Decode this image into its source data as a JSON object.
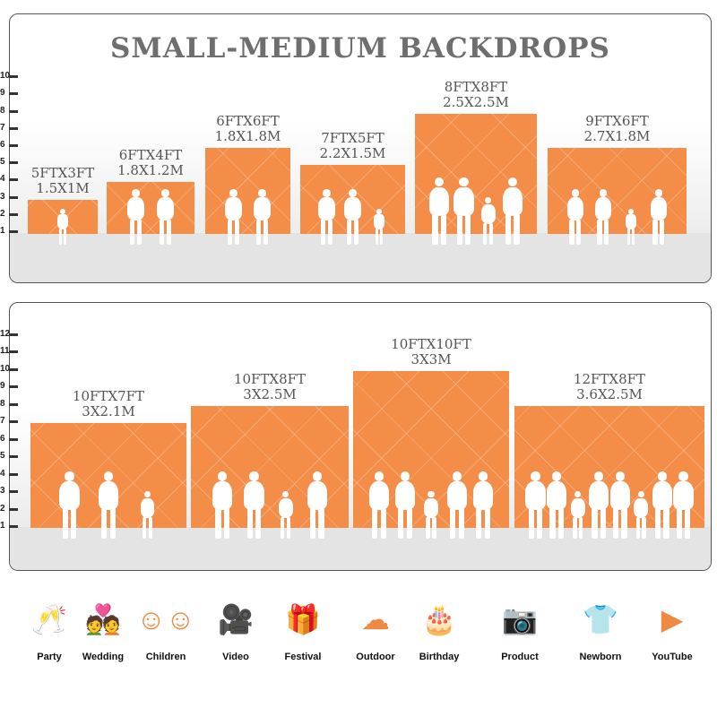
{
  "panels": [
    {
      "title": "SMALL-MEDIUM BACKDROPS",
      "ticks": [
        "1",
        "2",
        "3",
        "4",
        "5",
        "6",
        "7",
        "8",
        "9",
        "10"
      ],
      "unit_axis": "ft",
      "backdrops": [
        {
          "ft": "5FTX3FT",
          "m": "1.5X1M",
          "height_ft": 3,
          "people": 1
        },
        {
          "ft": "6FTX4FT",
          "m": "1.8X1.2M",
          "height_ft": 4,
          "people": 2
        },
        {
          "ft": "6FTX6FT",
          "m": "1.8X1.8M",
          "height_ft": 6,
          "people": 2
        },
        {
          "ft": "7FTX5FT",
          "m": "2.2X1.5M",
          "height_ft": 5,
          "people": 3
        },
        {
          "ft": "8FTX8FT",
          "m": "2.5X2.5M",
          "height_ft": 8,
          "people": 4
        },
        {
          "ft": "9FTX6FT",
          "m": "2.7X1.8M",
          "height_ft": 6,
          "people": 4
        }
      ]
    },
    {
      "title": "",
      "ticks": [
        "1",
        "2",
        "3",
        "4",
        "5",
        "6",
        "7",
        "8",
        "9",
        "10",
        "11",
        "12"
      ],
      "unit_axis": "ft",
      "backdrops": [
        {
          "ft": "10FTX7FT",
          "m": "3X2.1M",
          "height_ft": 7,
          "people": 3
        },
        {
          "ft": "10FTX8FT",
          "m": "3X2.5M",
          "height_ft": 8,
          "people": 4
        },
        {
          "ft": "10FTX10FT",
          "m": "3X3M",
          "height_ft": 10,
          "people": 5
        },
        {
          "ft": "12FTX8FT",
          "m": "3.6X2.5M",
          "height_ft": 8,
          "people": 8
        }
      ]
    }
  ],
  "uses": [
    {
      "label": "Party",
      "icon": "cheers-glasses-icon"
    },
    {
      "label": "Wedding",
      "icon": "wedding-couple-icon"
    },
    {
      "label": "Children",
      "icon": "children-faces-icon"
    },
    {
      "label": "Video",
      "icon": "video-camera-icon"
    },
    {
      "label": "Festival",
      "icon": "gift-box-icon"
    },
    {
      "label": "Outdoor",
      "icon": "cloud-icon"
    },
    {
      "label": "Birthday",
      "icon": "birthday-cake-icon"
    },
    {
      "label": "Product",
      "icon": "camera-icon"
    },
    {
      "label": "Newborn",
      "icon": "baby-onesie-icon"
    },
    {
      "label": "YouTube",
      "icon": "play-button-icon"
    }
  ],
  "colors": {
    "backdrop": "#f38d47",
    "title": "#6e6e6e",
    "icon": "#ef8a45"
  }
}
